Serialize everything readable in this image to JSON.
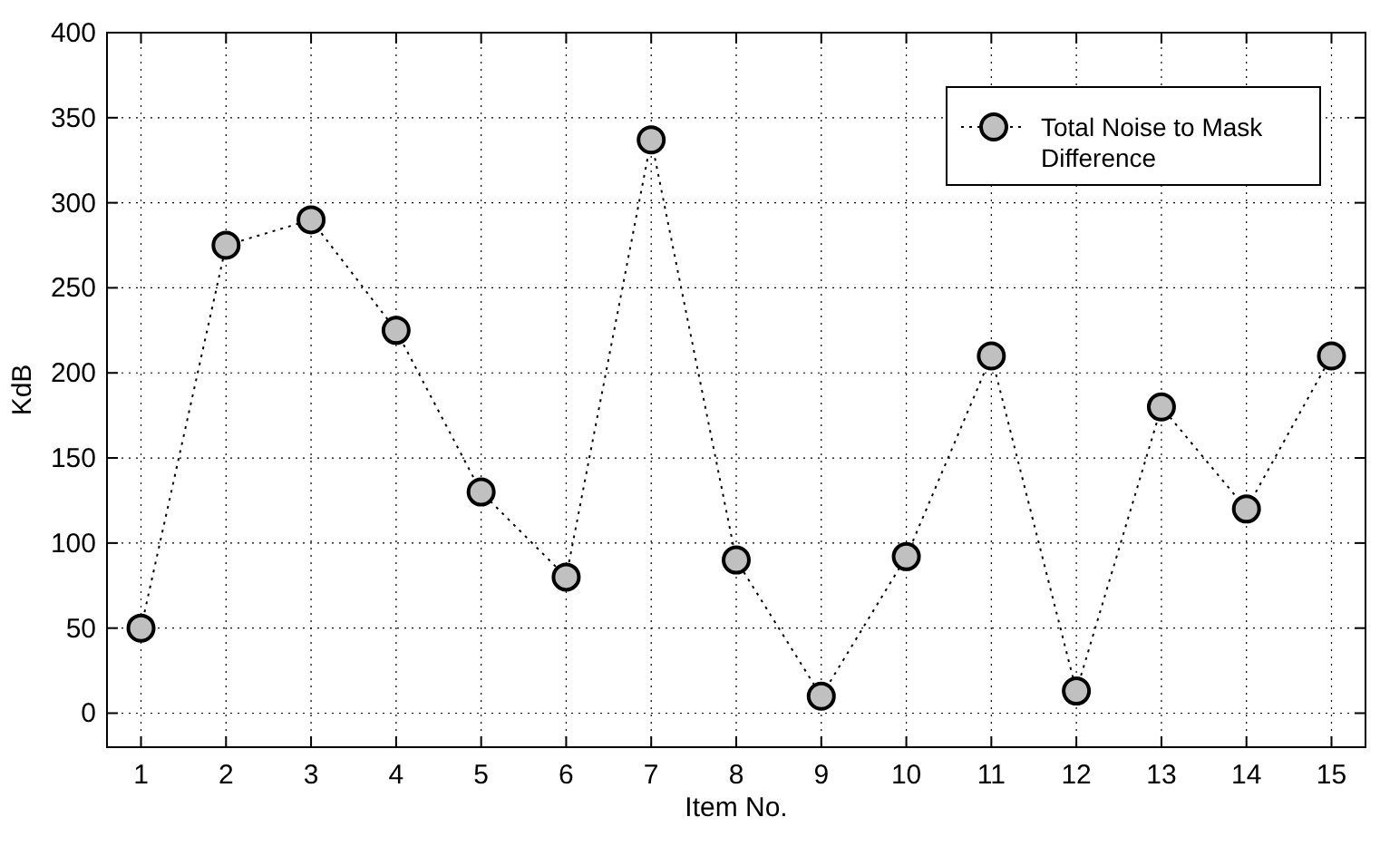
{
  "chart_data": {
    "type": "line",
    "xlabel": "Item No.",
    "ylabel": "KdB",
    "x": [
      1,
      2,
      3,
      4,
      5,
      6,
      7,
      8,
      9,
      10,
      11,
      12,
      13,
      14,
      15
    ],
    "series": [
      {
        "name": "Total Noise to Mask Difference",
        "color": "#c0c0c0",
        "values": [
          50,
          275,
          290,
          225,
          130,
          80,
          337,
          90,
          10,
          92,
          210,
          13,
          180,
          120,
          210
        ]
      }
    ],
    "xlim": [
      0.6,
      15.4
    ],
    "xticks": [
      1,
      2,
      3,
      4,
      5,
      6,
      7,
      8,
      9,
      10,
      11,
      12,
      13,
      14,
      15
    ],
    "ylim": [
      -20,
      400
    ],
    "yticks": [
      0,
      50,
      100,
      150,
      200,
      250,
      300,
      350,
      400
    ],
    "grid": true,
    "legend": "top right",
    "marker": "circle",
    "line_style": "dotted"
  }
}
